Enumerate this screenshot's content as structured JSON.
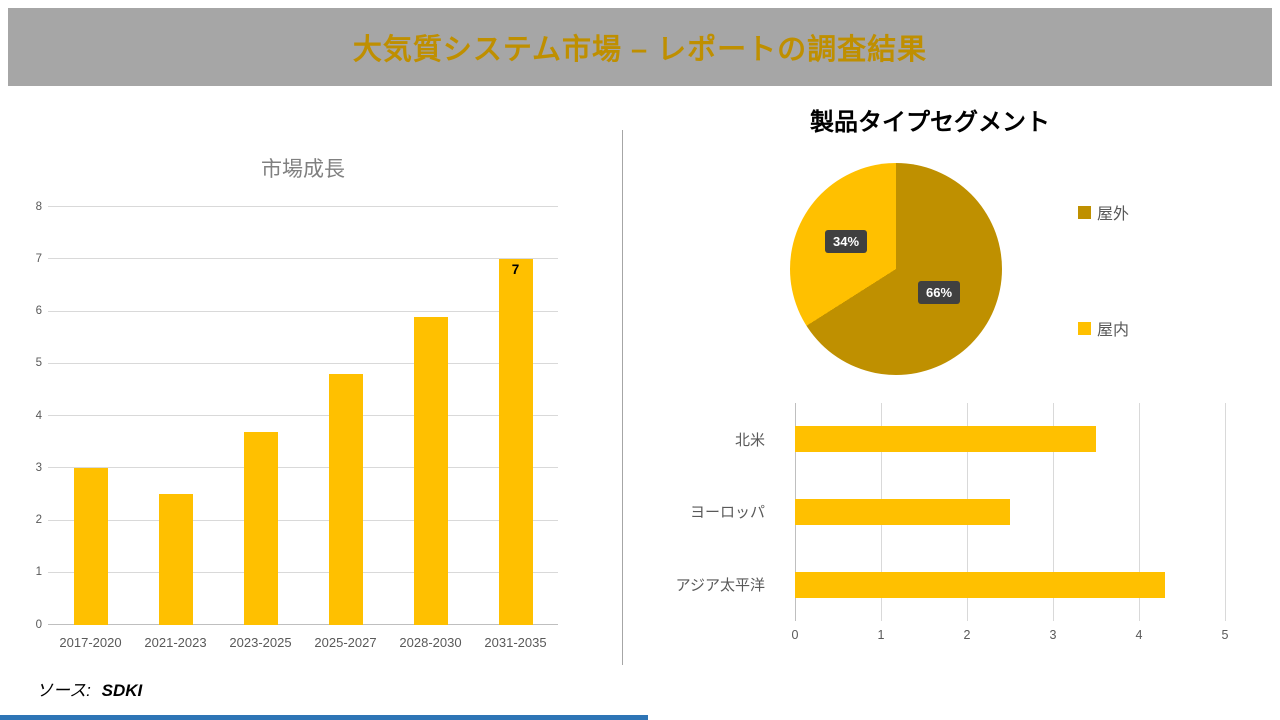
{
  "header": {
    "title": "大気質システム市場 – レポートの調査結果",
    "bg_color": "#A6A6A6",
    "text_color": "#BF8F00"
  },
  "footer": {
    "source_label": "ソース:",
    "source_value": "SDKI"
  },
  "accent": {
    "bar_color": "#FFC000",
    "pie_dark_color": "#BF9000",
    "label_box_color": "#404040",
    "bottom_line_color": "#2E75B6",
    "divider_color": "#A6A6A6"
  },
  "chart_data": [
    {
      "type": "bar",
      "title": "市場成長",
      "categories": [
        "2017-2020",
        "2021-2023",
        "2023-2025",
        "2025-2027",
        "2028-2030",
        "2031-2035"
      ],
      "values": [
        3,
        2.5,
        3.7,
        4.8,
        5.9,
        7
      ],
      "data_labels": [
        "",
        "",
        "",
        "",
        "",
        "7"
      ],
      "ylim": [
        0,
        8
      ],
      "yticks": [
        0,
        1,
        2,
        3,
        4,
        5,
        6,
        7,
        8
      ],
      "bar_color": "#FFC000",
      "grid": true,
      "legend": "none"
    },
    {
      "type": "pie",
      "title": "製品タイプセグメント",
      "labels": [
        "屋外",
        "屋内"
      ],
      "values": [
        66,
        34
      ],
      "display_labels": [
        "66%",
        "34%"
      ],
      "colors": [
        "#BF9000",
        "#FFC000"
      ],
      "legend_position": "right"
    },
    {
      "type": "bar-horizontal",
      "categories": [
        "北米",
        "ヨーロッパ",
        "アジア太平洋"
      ],
      "values": [
        3.5,
        2.5,
        4.3
      ],
      "xlim": [
        0,
        5
      ],
      "xticks": [
        0,
        1,
        2,
        3,
        4,
        5
      ],
      "bar_color": "#FFC000",
      "grid": true
    }
  ]
}
